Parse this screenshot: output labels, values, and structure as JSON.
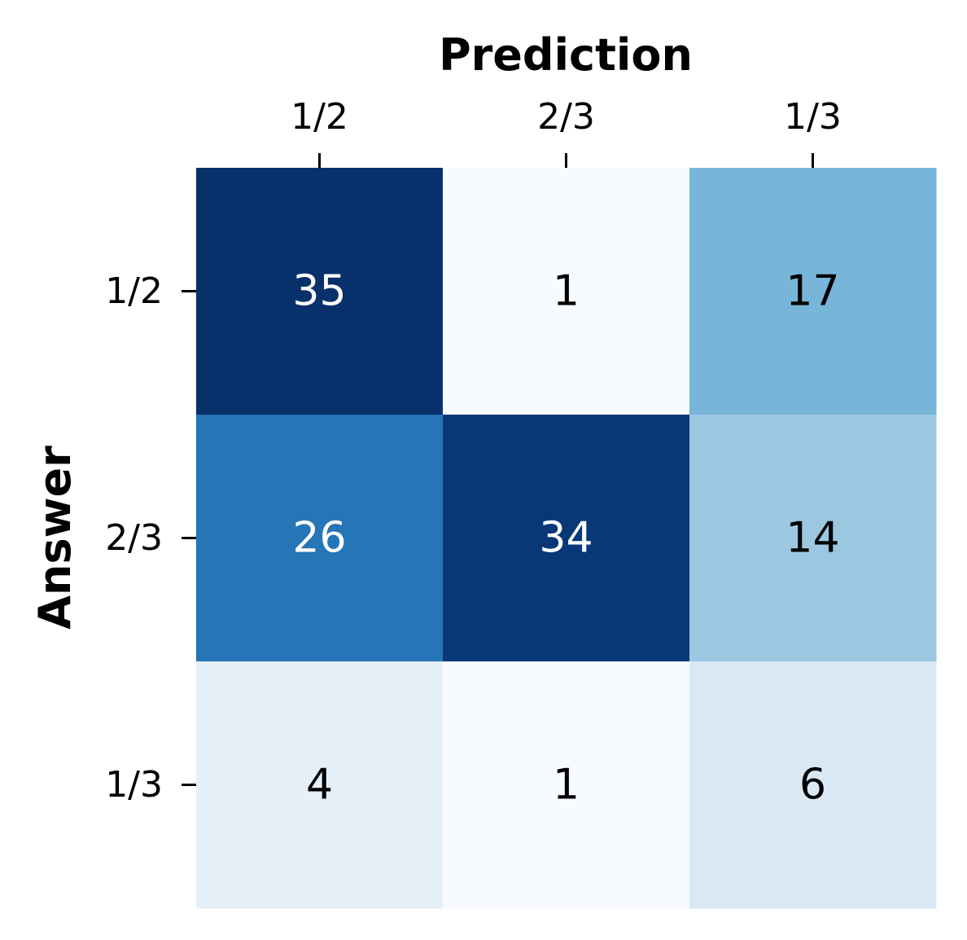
{
  "chart_data": {
    "type": "heatmap",
    "xlabel": "Prediction",
    "ylabel": "Answer",
    "x_categories": [
      "1/2",
      "2/3",
      "1/3"
    ],
    "y_categories": [
      "1/2",
      "2/3",
      "1/3"
    ],
    "values": [
      [
        35,
        1,
        17
      ],
      [
        26,
        34,
        14
      ],
      [
        4,
        1,
        6
      ]
    ],
    "colormap": "Blues",
    "colorbar": false,
    "x_tick_position": "top"
  }
}
